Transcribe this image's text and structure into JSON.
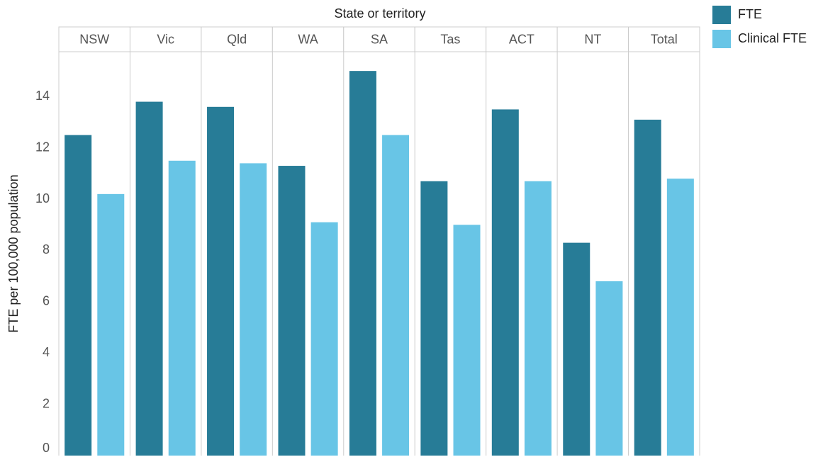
{
  "chart_data": {
    "type": "bar",
    "facet_title": "State or territory",
    "y_label": "FTE per 100,000 population",
    "categories": [
      "NSW",
      "Vic",
      "Qld",
      "WA",
      "SA",
      "Tas",
      "ACT",
      "NT",
      "Total"
    ],
    "series": [
      {
        "name": "FTE",
        "color": "#277c97",
        "values": [
          12.5,
          13.8,
          13.6,
          11.3,
          15.0,
          10.7,
          13.5,
          8.3,
          13.1
        ]
      },
      {
        "name": "Clinical FTE",
        "color": "#68c5e6",
        "values": [
          10.2,
          11.5,
          11.4,
          9.1,
          12.5,
          9.0,
          10.7,
          6.8,
          10.8
        ]
      }
    ],
    "ylim": [
      0,
      15.75
    ],
    "yticks": [
      0,
      2,
      4,
      6,
      8,
      10,
      12,
      14
    ],
    "grid": false,
    "legend": "top-right"
  }
}
